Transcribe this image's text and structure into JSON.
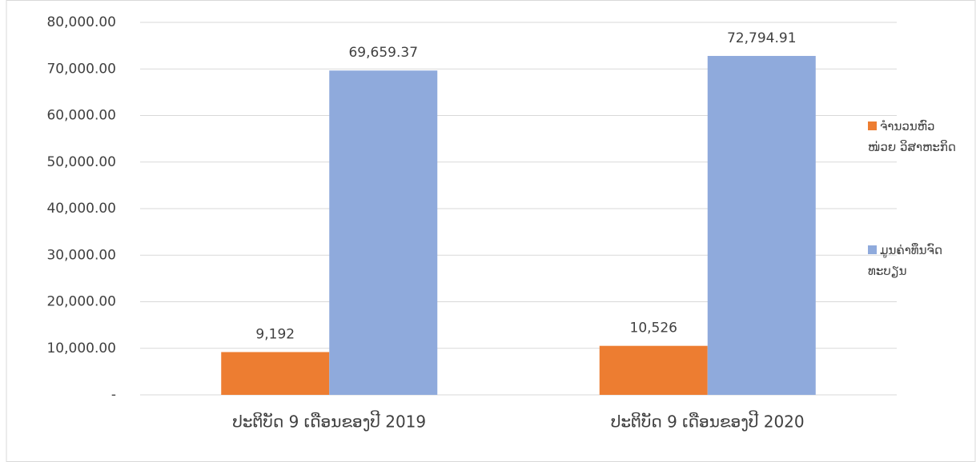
{
  "chart_data": {
    "type": "bar",
    "categories": [
      "ປະຕິບັດ 9 ເດືອນຂອງປີ 2019",
      "ປະຕິບັດ 9 ເດືອນຂອງປີ 2020"
    ],
    "series": [
      {
        "name": "ຈຳນວນຫົວ ໜ່ວຍ ວິສາຫະກິດ",
        "color": "#ed7d31",
        "values": [
          9192,
          10526
        ],
        "value_labels": [
          "9,192",
          "10,526"
        ]
      },
      {
        "name": "ມູນຄ່າທຶນຈົດ ທະບຽນ",
        "color": "#8faadc",
        "values": [
          69659.37,
          72794.91
        ],
        "value_labels": [
          "69,659.37",
          "72,794.91"
        ]
      }
    ],
    "ylim": [
      0,
      80000
    ],
    "yticks": [
      {
        "value": 0,
        "label": "-"
      },
      {
        "value": 10000,
        "label": "10,000.00"
      },
      {
        "value": 20000,
        "label": "20,000.00"
      },
      {
        "value": 30000,
        "label": "30,000.00"
      },
      {
        "value": 40000,
        "label": "40,000.00"
      },
      {
        "value": 50000,
        "label": "50,000.00"
      },
      {
        "value": 60000,
        "label": "60,000.00"
      },
      {
        "value": 70000,
        "label": "70,000.00"
      },
      {
        "value": 80000,
        "label": "80,000.00"
      }
    ],
    "grid": true,
    "legend": "right"
  }
}
